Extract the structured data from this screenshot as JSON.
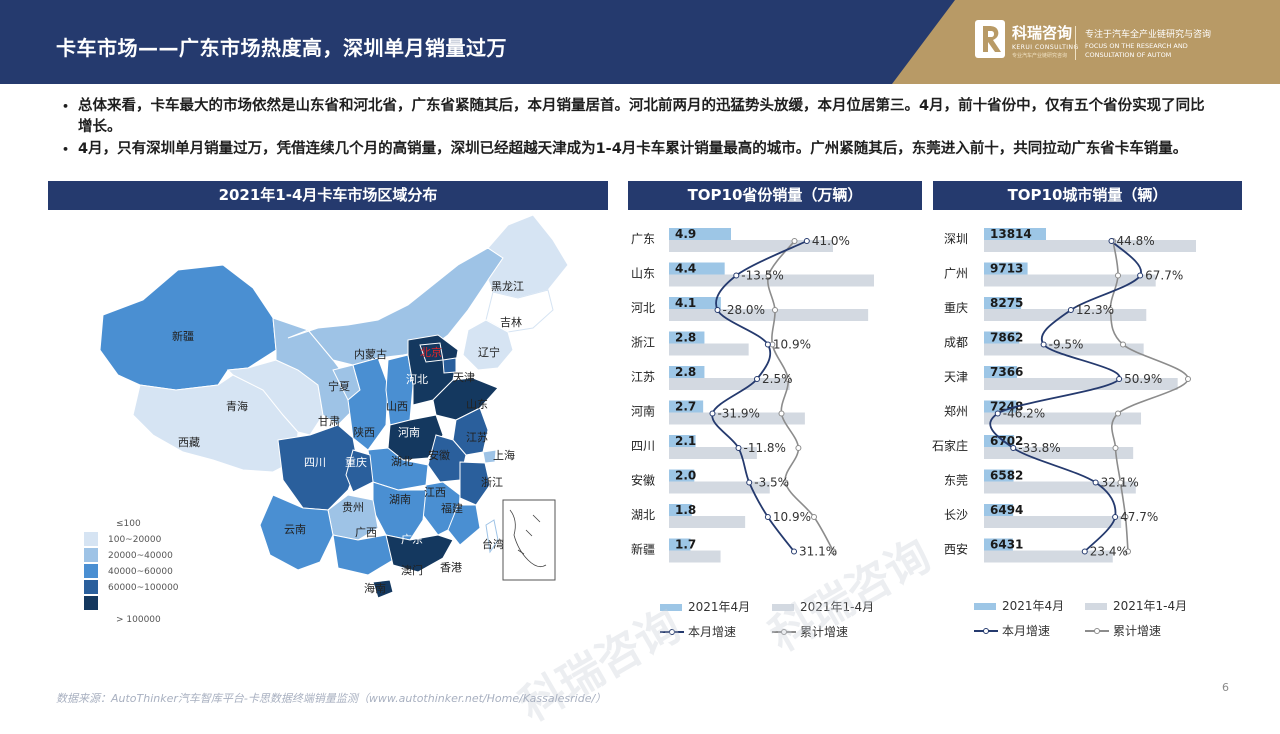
{
  "header": {
    "title": "卡车市场——广东市场热度高，深圳单月销量过万",
    "logo_cn": "科瑞咨询",
    "logo_en": "KERUI CONSULTING",
    "logo_sub": "专业汽车产业链研究咨询",
    "tagline_cn": "专注于汽车全产业链研究与咨询",
    "tagline_en_1": "FOCUS ON THE RESEARCH AND",
    "tagline_en_2": "CONSULTATION OF AUTOM"
  },
  "bullets": [
    {
      "dot": "•",
      "text": "总体来看，卡车最大的市场依然是山东省和河北省，广东省紧随其后，本月销量居首。河北前两月的迅猛势头放缓，本月位居第三。4月，前十省份中，仅有五个省份实现了同比增长。"
    },
    {
      "dot": "•",
      "text": "4月，只有深圳单月销量过万，凭借连续几个月的高销量，深圳已经超越天津成为1-4月卡车累计销量最高的城市。广州紧随其后，东莞进入前十，共同拉动广东省卡车销量。"
    }
  ],
  "panels": {
    "map": "2021年1-4月卡车市场区域分布",
    "province": "TOP10省份销量（万辆）",
    "city": "TOP10城市销量（辆）"
  },
  "map": {
    "legend": [
      "≤100",
      "100~20000",
      "20000~40000",
      "40000~60000",
      "60000~100000",
      "> 100000"
    ],
    "legend_colors": [
      "#ffffff",
      "#d6e4f3",
      "#9ec3e6",
      "#4a8fd2",
      "#2a5f9c",
      "#14385f"
    ],
    "highlight": "北京",
    "labels": [
      "黑龙江",
      "吉林",
      "辽宁",
      "北京",
      "天津",
      "河北",
      "山东",
      "内蒙古",
      "新疆",
      "宁夏",
      "甘肃",
      "青海",
      "西藏",
      "山西",
      "陕西",
      "河南",
      "江苏",
      "上海",
      "安徽",
      "湖北",
      "四川",
      "重庆",
      "浙江",
      "江西",
      "湖南",
      "贵州",
      "云南",
      "广西",
      "广东",
      "福建",
      "台湾",
      "香港",
      "澳门",
      "海南"
    ]
  },
  "chart_data": [
    {
      "type": "bar",
      "title": "TOP10省份销量（万辆）",
      "categories": [
        "广东",
        "山东",
        "河北",
        "浙江",
        "江苏",
        "河南",
        "四川",
        "安徽",
        "湖北",
        "新疆"
      ],
      "series": [
        {
          "name": "2021年4月",
          "values": [
            4.9,
            4.4,
            4.1,
            2.8,
            2.8,
            2.7,
            2.1,
            2.0,
            1.8,
            1.7
          ],
          "color": "#9dc6e6"
        },
        {
          "name": "2021年1-4月",
          "values": [
            14.0,
            17.5,
            17.0,
            6.8,
            10.3,
            11.6,
            7.5,
            8.6,
            6.5,
            4.4
          ],
          "color": "#d3d9e1"
        },
        {
          "name": "本月增速",
          "type": "line",
          "values": [
            41.0,
            -13.5,
            -28.0,
            10.9,
            2.5,
            -31.9,
            -11.8,
            -3.5,
            10.9,
            31.1
          ],
          "labels": [
            "41.0%",
            "-13.5%",
            "-28.0%",
            "10.9%",
            "2.5%",
            "-31.9%",
            "-11.8%",
            "-3.5%",
            "10.9%",
            "31.1%"
          ],
          "color": "#253a6e"
        },
        {
          "name": "累计增速",
          "type": "line",
          "values": [
            25.0,
            5.0,
            10.0,
            8.0,
            20.0,
            15.0,
            28.0,
            18.0,
            40.0,
            55.0
          ],
          "color": "#8c8c8c"
        }
      ],
      "legend": [
        "2021年4月",
        "2021年1-4月",
        "本月增速",
        "累计增速"
      ]
    },
    {
      "type": "bar",
      "title": "TOP10城市销量（辆）",
      "categories": [
        "深圳",
        "广州",
        "重庆",
        "成都",
        "天津",
        "郑州",
        "石家庄",
        "东莞",
        "长沙",
        "西安"
      ],
      "series": [
        {
          "name": "2021年4月",
          "values": [
            13814,
            9713,
            8275,
            7862,
            7366,
            7248,
            6702,
            6582,
            6494,
            6431
          ],
          "color": "#9dc6e6"
        },
        {
          "name": "2021年1-4月",
          "values": [
            40500,
            32800,
            31000,
            30500,
            37000,
            30000,
            28500,
            29000,
            26200,
            24600
          ],
          "color": "#d3d9e1"
        },
        {
          "name": "本月增速",
          "type": "line",
          "values": [
            44.8,
            67.7,
            12.3,
            -9.5,
            50.9,
            -46.2,
            -33.8,
            32.1,
            47.7,
            23.4
          ],
          "labels": [
            "44.8%",
            "67.7%",
            "12.3%",
            "-9.5%",
            "50.9%",
            "-46.2%",
            "-33.8%",
            "32.1%",
            "47.7%",
            "23.4%"
          ],
          "color": "#253a6e"
        },
        {
          "name": "累计增速",
          "type": "line",
          "values": [
            10.0,
            20.0,
            5.0,
            30.0,
            160.0,
            20.0,
            15.0,
            25.0,
            35.0,
            40.0
          ],
          "color": "#8c8c8c"
        }
      ],
      "legend": [
        "2021年4月",
        "2021年1-4月",
        "本月增速",
        "累计增速"
      ]
    }
  ],
  "footer": {
    "source": "数据来源：AutoThinker汽车智库平台-卡思数据终端销量监测（www.autothinker.net/Home/Kassalesride/）",
    "page": "6",
    "watermark": "科瑞咨询"
  }
}
